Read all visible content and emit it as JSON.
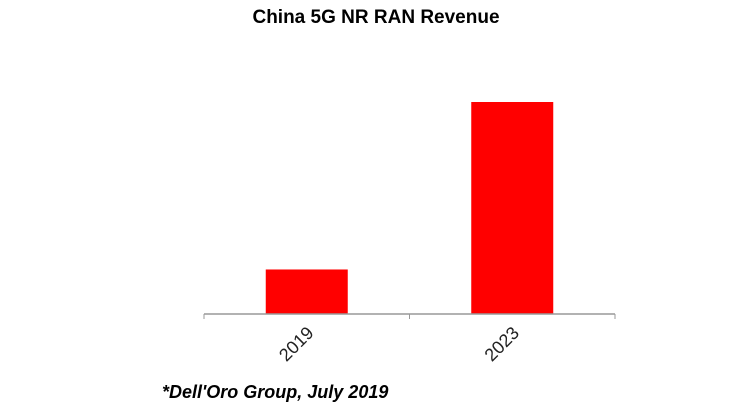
{
  "chart_data": {
    "type": "bar",
    "title": "China 5G NR RAN Revenue",
    "categories": [
      "2019",
      "2023"
    ],
    "values": [
      0.21,
      1.0
    ],
    "ylim": [
      0,
      1
    ],
    "xlabel": "",
    "ylabel": "",
    "grid": false,
    "bar_color": "#ff0000",
    "axis_color": "#999999"
  },
  "source_note": "*Dell'Oro Group, July 2019"
}
